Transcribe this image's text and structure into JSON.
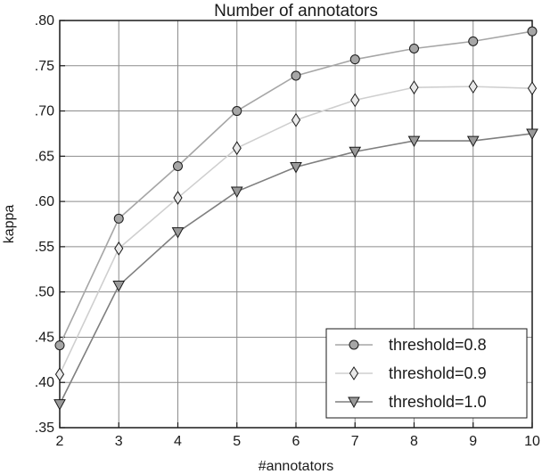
{
  "chart_data": {
    "type": "line",
    "title": "Number of annotators",
    "xlabel": "#annotators",
    "ylabel": "kappa",
    "x": [
      2,
      3,
      4,
      5,
      6,
      7,
      8,
      9,
      10
    ],
    "xlim": [
      2,
      10
    ],
    "ylim": [
      0.35,
      0.8
    ],
    "x_ticks": [
      2,
      3,
      4,
      5,
      6,
      7,
      8,
      9,
      10
    ],
    "x_tick_labels": [
      "2",
      "3",
      "4",
      "5",
      "6",
      "7",
      "8",
      "9",
      "10"
    ],
    "y_ticks": [
      0.35,
      0.4,
      0.45,
      0.5,
      0.55,
      0.6,
      0.65,
      0.7,
      0.75,
      0.8
    ],
    "y_tick_labels": [
      ".35",
      ".40",
      ".45",
      ".50",
      ".55",
      ".60",
      ".65",
      ".70",
      ".75",
      ".80"
    ],
    "grid": true,
    "legend_position": "bottom-right",
    "series": [
      {
        "name": "threshold=0.8",
        "marker": "circle",
        "color": "#a6a6a6",
        "marker_fill": "#a6a6a6",
        "values": [
          0.441,
          0.581,
          0.639,
          0.7,
          0.739,
          0.757,
          0.769,
          0.777,
          0.788
        ]
      },
      {
        "name": "threshold=0.9",
        "marker": "diamond",
        "color": "#cfcfcf",
        "marker_fill": "#e9e9e9",
        "values": [
          0.409,
          0.548,
          0.604,
          0.659,
          0.69,
          0.712,
          0.726,
          0.727,
          0.725
        ]
      },
      {
        "name": "threshold=1.0",
        "marker": "triangle-down",
        "color": "#7f7f7f",
        "marker_fill": "#9a9a9a",
        "values": [
          0.376,
          0.507,
          0.566,
          0.611,
          0.638,
          0.655,
          0.667,
          0.667,
          0.675
        ]
      }
    ]
  }
}
